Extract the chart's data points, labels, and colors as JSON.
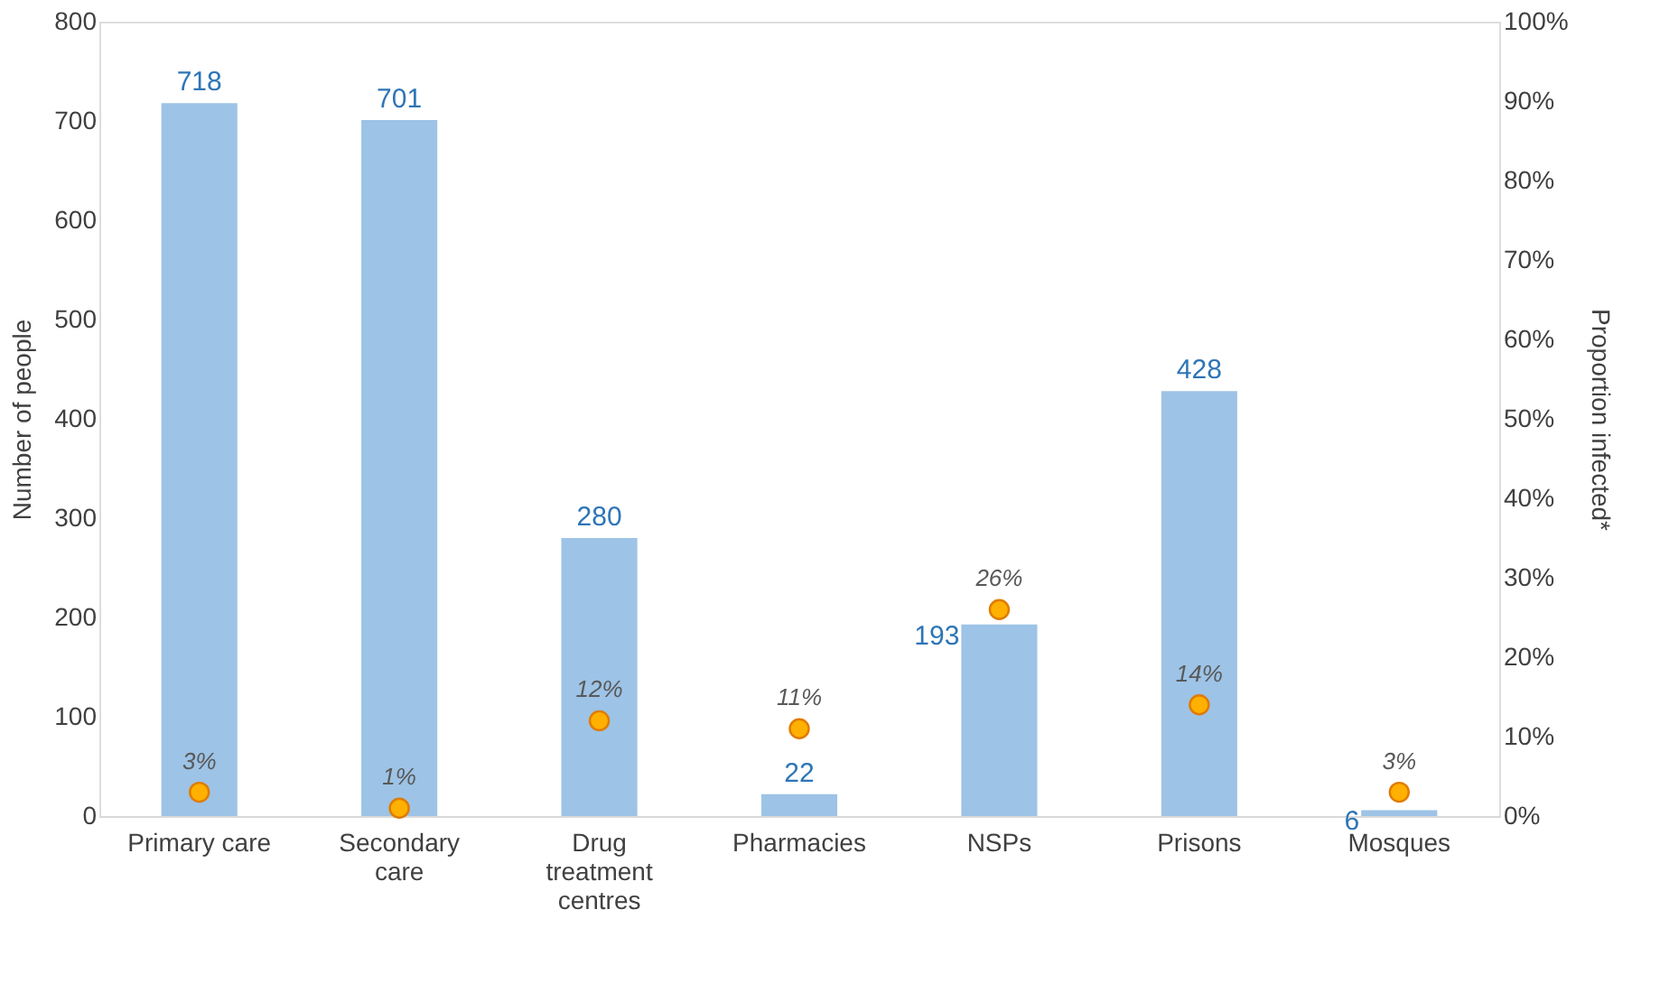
{
  "chart_data": {
    "type": "bar",
    "ylabel": "Number of people",
    "y2label": "Proportion infected*",
    "categories": [
      "Primary care",
      "Secondary care",
      "Drug treatment centres",
      "Pharmacies",
      "NSPs",
      "Prisons",
      "Mosques"
    ],
    "ylim": [
      0,
      800
    ],
    "yticks": [
      0,
      100,
      200,
      300,
      400,
      500,
      600,
      700,
      800
    ],
    "y2lim": [
      0,
      100
    ],
    "y2ticks": [
      {
        "value": 0,
        "label": "0%"
      },
      {
        "value": 10,
        "label": "10%"
      },
      {
        "value": 20,
        "label": "20%"
      },
      {
        "value": 30,
        "label": "30%"
      },
      {
        "value": 40,
        "label": "40%"
      },
      {
        "value": 50,
        "label": "50%"
      },
      {
        "value": 60,
        "label": "60%"
      },
      {
        "value": 70,
        "label": "70%"
      },
      {
        "value": 80,
        "label": "80%"
      },
      {
        "value": 90,
        "label": "90%"
      },
      {
        "value": 100,
        "label": "100%"
      }
    ],
    "grid": false,
    "legend": false,
    "series": [
      {
        "color": "#9dc3e6",
        "values": [
          718,
          701,
          280,
          22,
          193,
          428,
          6
        ],
        "data_labels": true
      },
      {
        "type": "scatter",
        "axis": "y2",
        "color": "#ffb000",
        "marker": "circle",
        "values": [
          3,
          1,
          12,
          11,
          26,
          14,
          3
        ],
        "value_labels": [
          "3%",
          "1%",
          "12%",
          "11%",
          "26%",
          "14%",
          "3%"
        ]
      }
    ]
  }
}
